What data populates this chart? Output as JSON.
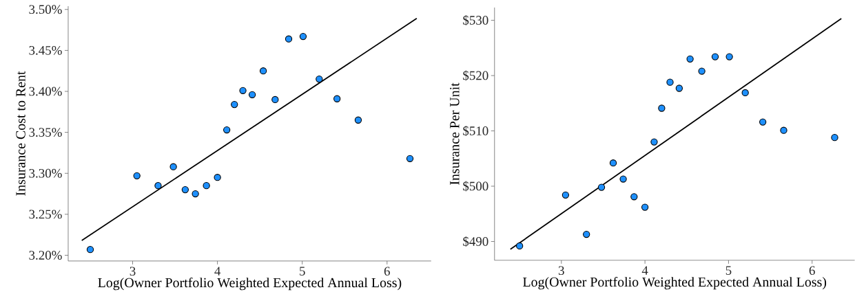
{
  "chart_data": [
    {
      "type": "scatter",
      "xlabel": "Log(Owner Portfolio Weighted Expected Annual Loss)",
      "ylabel": "Insurance Cost to Rent",
      "marker": "circle",
      "grid": false,
      "xlim": [
        2.24,
        6.52
      ],
      "ylim": [
        3.193,
        3.504
      ],
      "xticks": [
        3,
        4,
        5,
        6
      ],
      "yticks": [
        {
          "value": 3.2,
          "label": "3.20%"
        },
        {
          "value": 3.25,
          "label": "3.25%"
        },
        {
          "value": 3.3,
          "label": "3.30%"
        },
        {
          "value": 3.35,
          "label": "3.35%"
        },
        {
          "value": 3.4,
          "label": "3.40%"
        },
        {
          "value": 3.45,
          "label": "3.45%"
        },
        {
          "value": 3.5,
          "label": "3.50%"
        }
      ],
      "series": [
        {
          "type": "scatter",
          "color": "#1e90ff",
          "x": [
            2.5,
            3.05,
            3.3,
            3.48,
            3.62,
            3.74,
            3.87,
            4.0,
            4.11,
            4.2,
            4.3,
            4.41,
            4.54,
            4.68,
            4.84,
            5.01,
            5.2,
            5.41,
            5.66,
            6.27
          ],
          "values": [
            3.207,
            3.297,
            3.285,
            3.308,
            3.28,
            3.275,
            3.285,
            3.295,
            3.353,
            3.384,
            3.401,
            3.396,
            3.425,
            3.39,
            3.464,
            3.467,
            3.415,
            3.391,
            3.365,
            3.318
          ]
        },
        {
          "type": "line",
          "marker": "none",
          "color": "#000000",
          "x": [
            2.4,
            6.35
          ],
          "values": [
            3.218,
            3.489
          ]
        }
      ]
    },
    {
      "type": "scatter",
      "xlabel": "Log(Owner Portfolio Weighted Expected Annual Loss)",
      "ylabel": "Insurance Per Unit",
      "marker": "circle",
      "grid": false,
      "xlim": [
        2.2,
        6.51
      ],
      "ylim": [
        486.6,
        532.3
      ],
      "xticks": [
        3,
        4,
        5,
        6
      ],
      "yticks": [
        {
          "value": 490,
          "label": "$490"
        },
        {
          "value": 500,
          "label": "$500"
        },
        {
          "value": 510,
          "label": "$510"
        },
        {
          "value": 520,
          "label": "$520"
        },
        {
          "value": 530,
          "label": "$530"
        }
      ],
      "series": [
        {
          "type": "scatter",
          "color": "#1e90ff",
          "x": [
            2.5,
            3.05,
            3.3,
            3.48,
            3.62,
            3.74,
            3.87,
            4.0,
            4.11,
            4.2,
            4.3,
            4.41,
            4.54,
            4.68,
            4.84,
            5.01,
            5.2,
            5.41,
            5.66,
            6.27
          ],
          "values": [
            489.2,
            498.4,
            491.3,
            499.8,
            504.2,
            501.3,
            498.1,
            496.2,
            508.0,
            514.1,
            518.8,
            517.7,
            523.0,
            520.8,
            523.4,
            523.4,
            516.9,
            511.6,
            510.1,
            508.8
          ]
        },
        {
          "type": "line",
          "marker": "none",
          "color": "#000000",
          "x": [
            2.39,
            6.35
          ],
          "values": [
            488.6,
            530.3
          ]
        }
      ]
    }
  ]
}
